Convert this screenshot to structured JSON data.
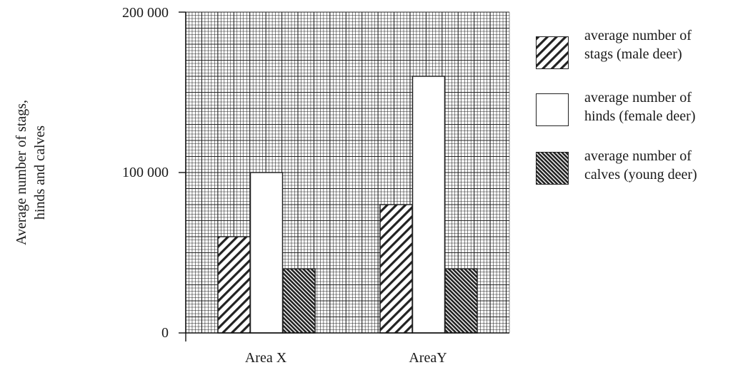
{
  "chart_data": {
    "type": "bar",
    "categories": [
      "Area X",
      "AreaY"
    ],
    "series": [
      {
        "name": "average number of stags (male deer)",
        "values": [
          60000,
          80000
        ],
        "pattern": "hatch-stags"
      },
      {
        "name": "average number of hinds (female deer)",
        "values": [
          100000,
          160000
        ],
        "pattern": "white"
      },
      {
        "name": "average number of calves (young deer)",
        "values": [
          40000,
          40000
        ],
        "pattern": "hatch-calves"
      }
    ],
    "ylabel": "Average number of stags, hinds and calves",
    "ylabel_lines": [
      "Average number of stags,",
      "hinds and calves"
    ],
    "ylim": [
      0,
      200000
    ],
    "yticks": [
      0,
      100000,
      200000
    ],
    "ytick_labels": [
      "0",
      "100 000",
      "200 000"
    ],
    "grid": true,
    "legend_position": "right",
    "legend": [
      {
        "line1": "average number of",
        "line2": "stags (male deer)"
      },
      {
        "line1": "average number of",
        "line2": "hinds (female deer)"
      },
      {
        "line1": "average number of",
        "line2": "calves (young deer)"
      }
    ]
  }
}
